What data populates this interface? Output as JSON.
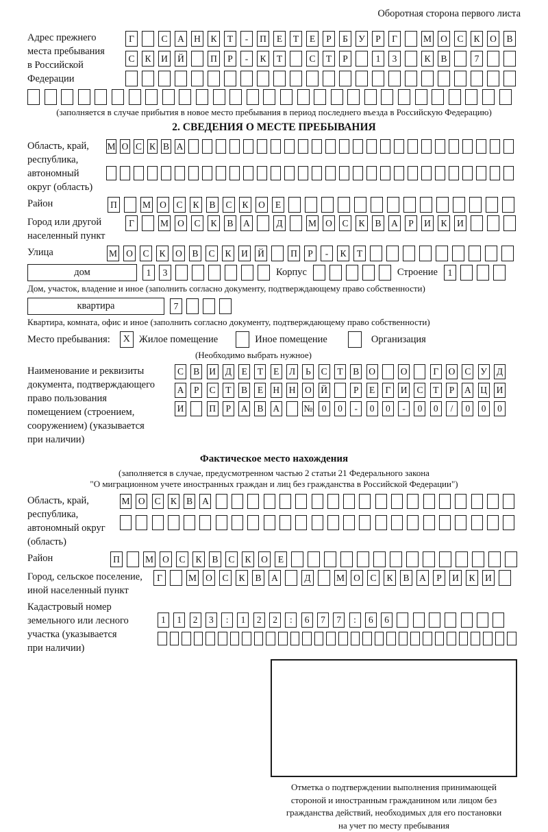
{
  "header": {
    "note": "Оборотная сторона первого листа"
  },
  "prev_address": {
    "label": "Адрес прежнего\nместа пребывания\nв Российской\nФедерации",
    "row1": {
      "text": "Г САНКТ-ПЕТЕРБУРГ МОСКОВ",
      "len": 24
    },
    "row2": {
      "text": "СКИЙ ПР-КТ СТР 13 КВ 7",
      "len": 24
    },
    "row3": {
      "text": "",
      "len": 24
    },
    "row4": {
      "text": "",
      "len": 29
    },
    "note": "(заполняется в случае прибытия в новое место пребывания в период последнего въезда в Российскую Федерацию)"
  },
  "section2": {
    "title": "2. СВЕДЕНИЯ О МЕСТЕ ПРЕБЫВАНИЯ",
    "oblast": {
      "label": "Область, край,\nреспублика,\nавтономный\nокруг (область)",
      "row1": {
        "text": "МОСКВА",
        "len": 30
      },
      "row2": {
        "text": "",
        "len": 30
      }
    },
    "raion": {
      "label": "Район",
      "cells": {
        "text": "П МОСКВСКОЕ",
        "len": 25
      }
    },
    "gorod": {
      "label": "Город или другой\nнаселенный пункт",
      "cells": {
        "text": "Г МОСКВА Д МОСКВАРИКИ",
        "len": 24
      }
    },
    "ulitsa": {
      "label": "Улица",
      "cells": {
        "text": "МОСКОВСКИЙ ПР-КТ",
        "len": 25
      }
    },
    "dom": {
      "box_label": "дом",
      "cells": {
        "text": "13",
        "len": 8
      },
      "korpus_label": "Корпус",
      "korpus_cells": {
        "text": "",
        "len": 5
      },
      "stroenie_label": "Строение",
      "stroenie_cells": {
        "text": "1",
        "len": 4
      },
      "note": "Дом, участок, владение и иное (заполнить согласно документу, подтверждающему право собственности)"
    },
    "kvartira": {
      "box_label": "квартира",
      "cells": {
        "text": "7",
        "len": 4
      },
      "note": "Квартира, комната, офис и иное (заполнить согласно документу, подтверждающему право собственности)"
    },
    "stay": {
      "label": "Место пребывания:",
      "opt1": {
        "mark": "X",
        "label": "Жилое помещение"
      },
      "opt2": {
        "mark": "",
        "label": "Иное помещение"
      },
      "opt3": {
        "mark": "",
        "label": "Организация"
      },
      "note": "(Необходимо выбрать нужное)"
    },
    "doc": {
      "label": "Наименование и реквизиты\nдокумента, подтверждающего\nправо пользования\nпомещением (строением,\nсооружением) (указывается\nпри наличии)",
      "row1": {
        "text": "СВИДЕТЕЛЬСТВО О ГОСУД",
        "len": 21
      },
      "row2": {
        "text": "АРСТВЕННОЙ РЕГИСТРАЦИ",
        "len": 21
      },
      "row3": {
        "text": "И ПРАВА №00-00-00/000",
        "len": 21
      }
    }
  },
  "fact": {
    "title": "Фактическое место нахождения",
    "note1": "(заполняется в случае, предусмотренном частью 2 статьи 21 Федерального закона",
    "note2": "\"О миграционном учете иностранных граждан и лиц без гражданства в Российской Федерации\")",
    "oblast": {
      "label": "Область, край,\nреспублика,\nавтономный округ\n(область)",
      "row1": {
        "text": "МОСКВА",
        "len": 25
      },
      "row2": {
        "text": "",
        "len": 25
      }
    },
    "raion": {
      "label": "Район",
      "cells": {
        "text": "П МОСКВСКОЕ",
        "len": 25
      }
    },
    "gorod": {
      "label": "Город, сельское поселение,\nиной населенный пункт",
      "cells": {
        "text": "Г МОСКВА Д МОСКВАРИКИ",
        "len": 22
      }
    },
    "kadastr": {
      "label": "Кадастровый номер\nземельного или лесного\nучастка (указывается\nпри наличии)",
      "row1": {
        "text": "1123:122:677:66",
        "len": 22
      },
      "row2": {
        "text": "",
        "len": 30
      }
    }
  },
  "stamp": {
    "note": "Отметка о подтверждении выполнения принимающей\nстороной и иностранным гражданином или лицом без\nгражданства действий, необходимых для его постановки\nна учет по месту пребывания"
  }
}
